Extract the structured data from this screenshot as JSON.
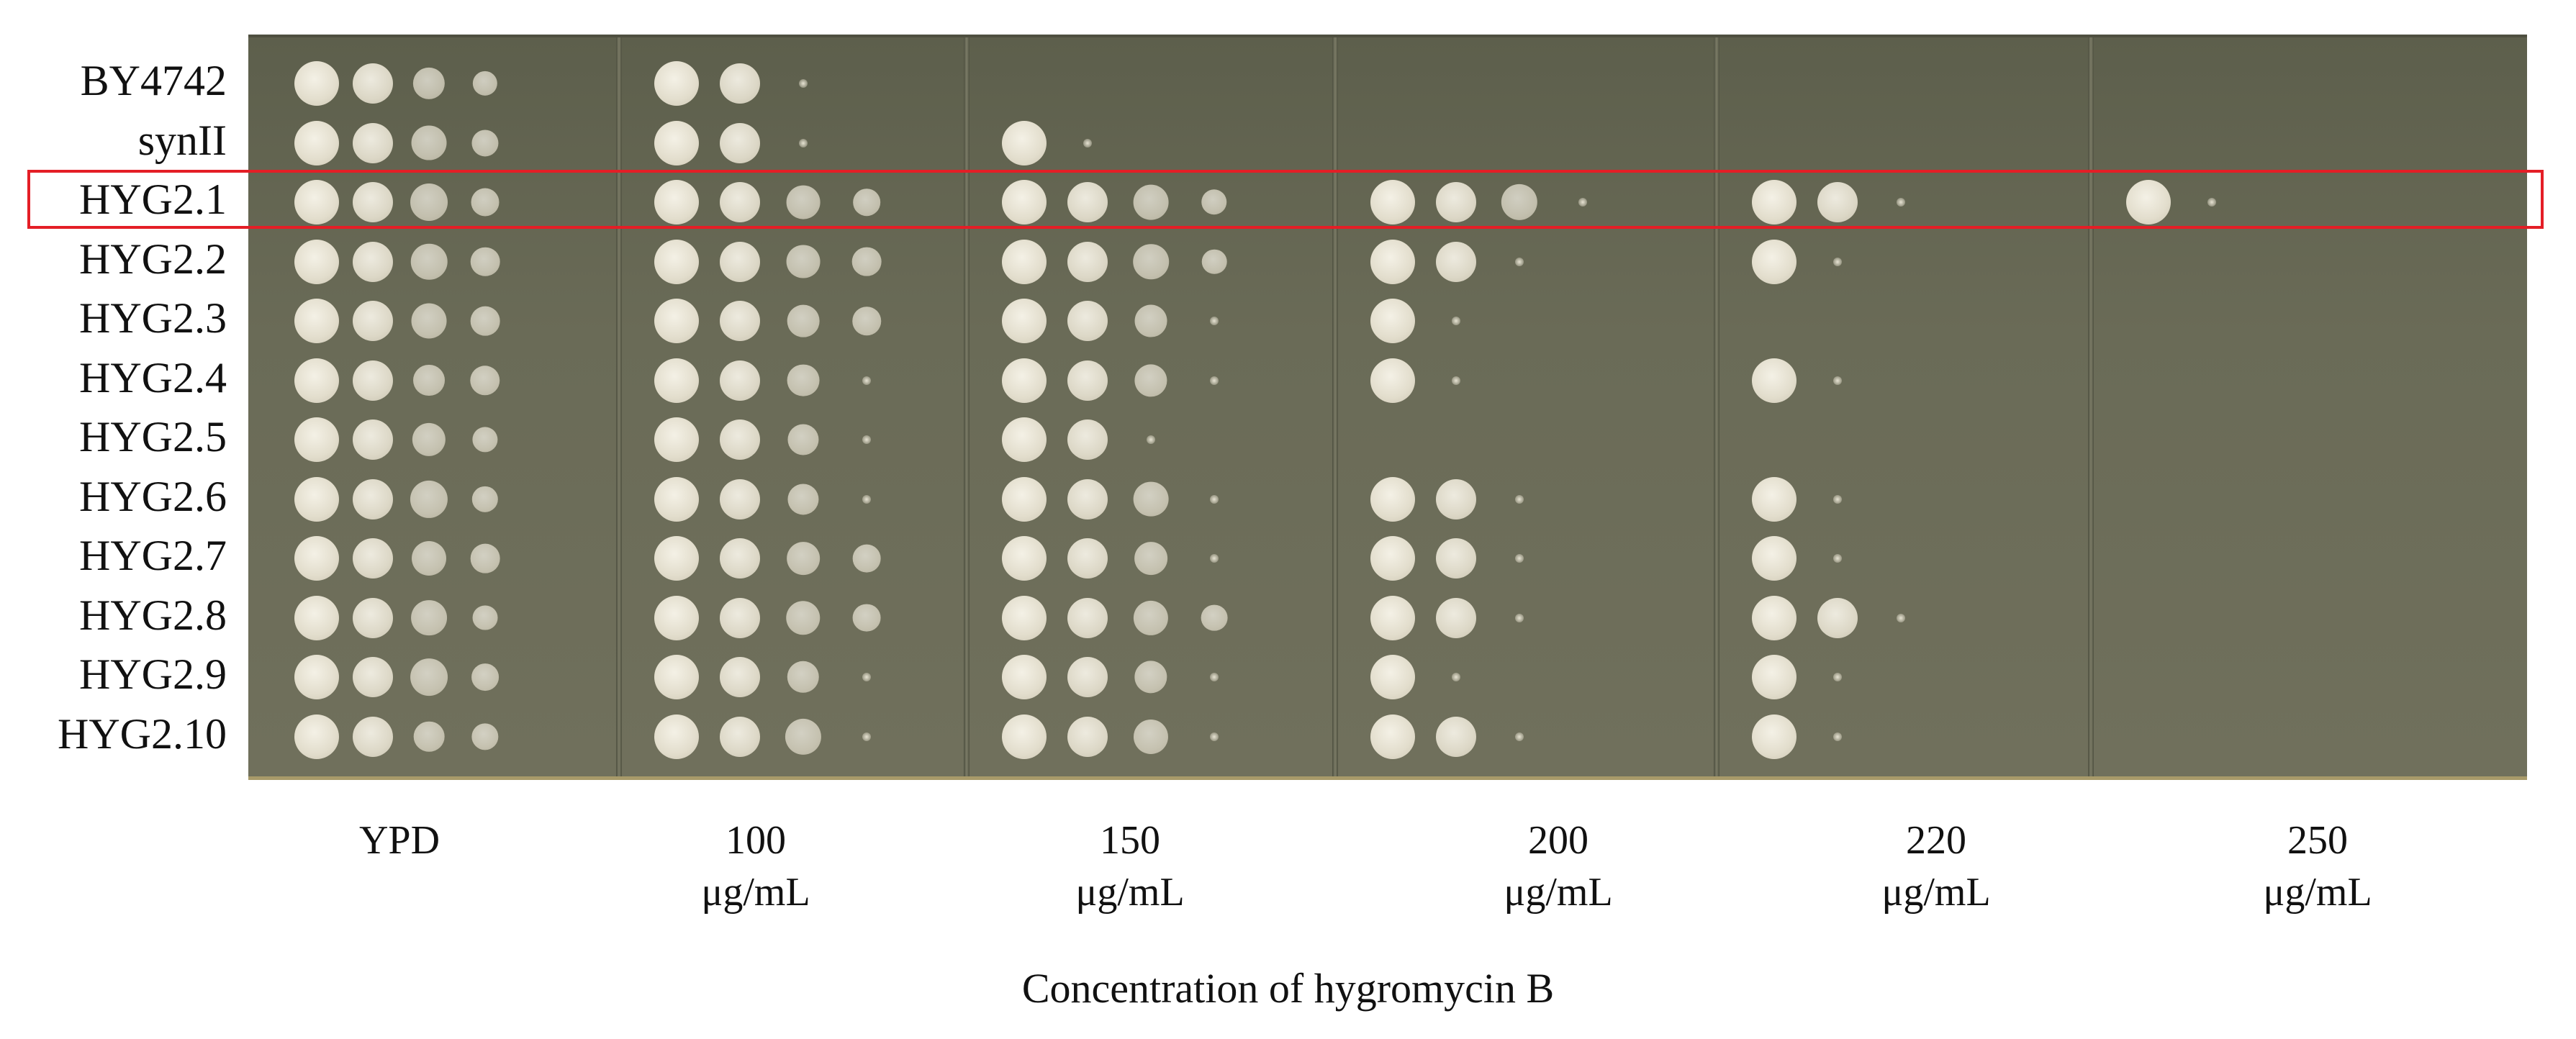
{
  "strains": [
    "BY4742",
    "synII",
    "HYG2.1",
    "HYG2.2",
    "HYG2.3",
    "HYG2.4",
    "HYG2.5",
    "HYG2.6",
    "HYG2.7",
    "HYG2.8",
    "HYG2.9",
    "HYG2.10"
  ],
  "highlighted_strain": "HYG2.1",
  "conditions": [
    {
      "name": "YPD",
      "unit": ""
    },
    {
      "name": "100",
      "unit": "μg/mL"
    },
    {
      "name": "150",
      "unit": "μg/mL"
    },
    {
      "name": "200",
      "unit": "μg/mL"
    },
    {
      "name": "220",
      "unit": "μg/mL"
    },
    {
      "name": "250",
      "unit": "μg/mL"
    }
  ],
  "x_axis_title": "Concentration of hygromycin B",
  "colors": {
    "plate": "#65665a",
    "colony": "#ece8da",
    "highlight_box": "#e41e26",
    "text": "#111111"
  },
  "growth_levels": [
    [
      4,
      2,
      0,
      0,
      0,
      0
    ],
    [
      4,
      2,
      1,
      0,
      0,
      0
    ],
    [
      4,
      4,
      4,
      3,
      2,
      1
    ],
    [
      4,
      4,
      4,
      2,
      1,
      0
    ],
    [
      4,
      4,
      3,
      1,
      0,
      0
    ],
    [
      4,
      3,
      3,
      1,
      1,
      0
    ],
    [
      4,
      3,
      2,
      0,
      0,
      0
    ],
    [
      4,
      3,
      3,
      2,
      1,
      0
    ],
    [
      4,
      4,
      3,
      2,
      1,
      0
    ],
    [
      4,
      4,
      4,
      2,
      2,
      0
    ],
    [
      4,
      3,
      3,
      1,
      1,
      0
    ],
    [
      4,
      3,
      3,
      2,
      1,
      0
    ]
  ]
}
